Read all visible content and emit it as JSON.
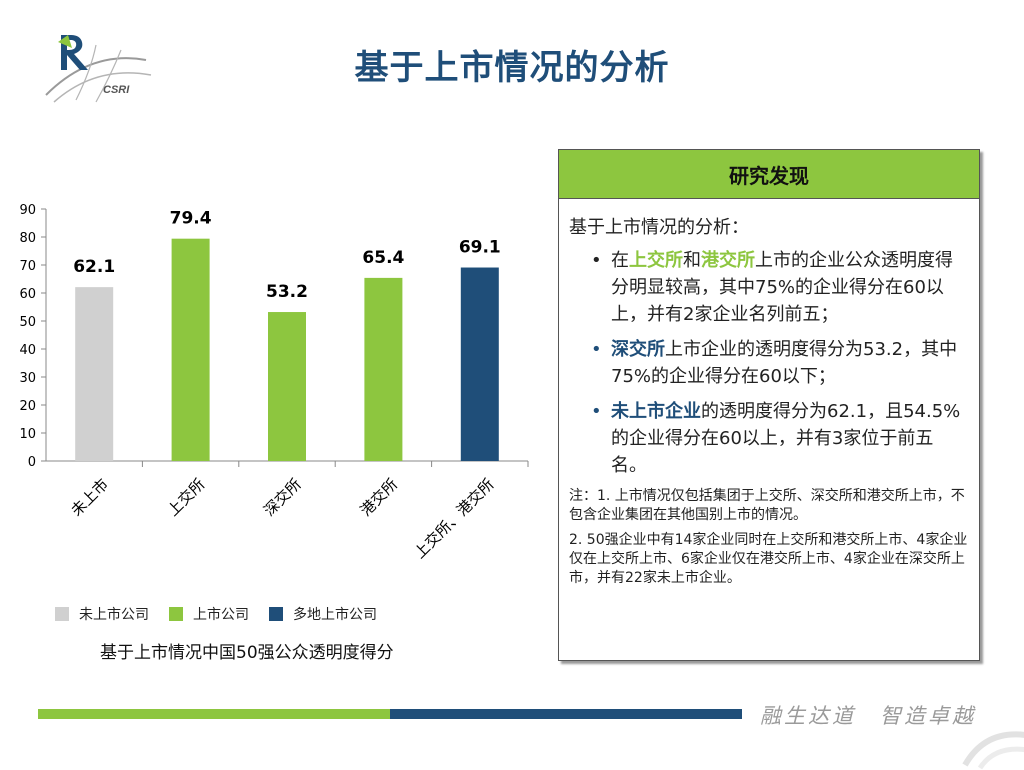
{
  "header": {
    "title": "基于上市情况的分析",
    "logo_text": "CSRI"
  },
  "chart_caption": "基于上市情况中国50强公众透明度得分",
  "legend": [
    {
      "label": "未上市公司",
      "color": "#d0d0d0"
    },
    {
      "label": "上市公司",
      "color": "#8dc63f"
    },
    {
      "label": "多地上市公司",
      "color": "#1f4e79"
    }
  ],
  "chart_data": {
    "type": "bar",
    "categories": [
      "未上市",
      "上交所",
      "深交所",
      "港交所",
      "上交所、港交所"
    ],
    "values": [
      62.1,
      79.4,
      53.2,
      65.4,
      69.1
    ],
    "value_labels": [
      "62.1",
      "79.4",
      "53.2",
      "65.4",
      "69.1"
    ],
    "colors": [
      "#d0d0d0",
      "#8dc63f",
      "#8dc63f",
      "#8dc63f",
      "#1f4e79"
    ],
    "ylim": [
      0,
      90
    ],
    "yticks": [
      0,
      10,
      20,
      30,
      40,
      50,
      60,
      70,
      80,
      90
    ],
    "grid": false,
    "legend_position": "bottom-left"
  },
  "panel": {
    "header": "研究发现",
    "intro": "基于上市情况的分析：",
    "findings": [
      {
        "p1": "在",
        "h1": "上交所",
        "p2": "和",
        "h2": "港交所",
        "p3": "上市的企业公众透明度得分明显较高，其中75%的企业得分在60以上，并有2家企业名列前五；"
      },
      {
        "h1": "深交所",
        "p1": "上市企业的透明度得分为53.2，其中75%的企业得分在60以下；"
      },
      {
        "h1": "未上市企业",
        "p1": "的透明度得分为62.1，且54.5%的企业得分在60以上，并有3家位于前五名。"
      }
    ],
    "note1": "注：1. 上市情况仅包括集团于上交所、深交所和港交所上市，不包含企业集团在其他国别上市的情况。",
    "note2": "2. 50强企业中有14家企业同时在上交所和港交所上市、4家企业仅在上交所上市、6家企业仅在港交所上市、4家企业在深交所上市，并有22家未上市企业。"
  },
  "footer": {
    "slogan": "融生达道　智造卓越"
  }
}
